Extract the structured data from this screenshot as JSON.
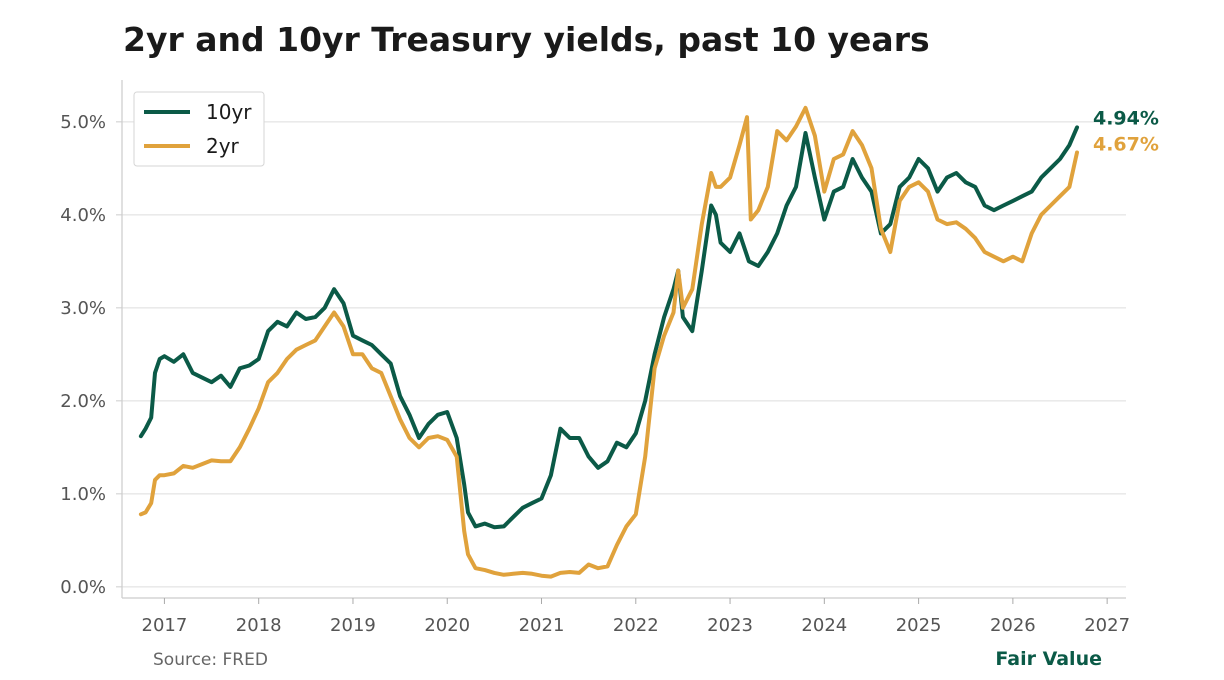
{
  "chart_data": {
    "type": "line",
    "title": "2yr and 10yr Treasury yields, past 10 years",
    "xlabel": "",
    "ylabel": "",
    "xlim": [
      2016.55,
      2027.2
    ],
    "ylim": [
      -0.12,
      5.45
    ],
    "x_ticks": [
      2017,
      2018,
      2019,
      2020,
      2021,
      2022,
      2023,
      2024,
      2025,
      2026,
      2027
    ],
    "y_ticks": [
      0,
      1,
      2,
      3,
      4,
      5
    ],
    "y_tick_labels": [
      "0.0%",
      "1.0%",
      "2.0%",
      "3.0%",
      "4.0%",
      "5.0%"
    ],
    "grid": "horizontal",
    "legend_position": "top-left",
    "series": [
      {
        "name": "10yr",
        "color": "#0b5a47",
        "end_label": "4.94%",
        "points": [
          [
            2016.75,
            1.62
          ],
          [
            2016.8,
            1.7
          ],
          [
            2016.86,
            1.82
          ],
          [
            2016.9,
            2.3
          ],
          [
            2016.95,
            2.45
          ],
          [
            2017.0,
            2.48
          ],
          [
            2017.1,
            2.42
          ],
          [
            2017.2,
            2.5
          ],
          [
            2017.3,
            2.3
          ],
          [
            2017.4,
            2.25
          ],
          [
            2017.5,
            2.2
          ],
          [
            2017.6,
            2.27
          ],
          [
            2017.7,
            2.15
          ],
          [
            2017.8,
            2.35
          ],
          [
            2017.9,
            2.38
          ],
          [
            2018.0,
            2.45
          ],
          [
            2018.1,
            2.75
          ],
          [
            2018.2,
            2.85
          ],
          [
            2018.3,
            2.8
          ],
          [
            2018.4,
            2.95
          ],
          [
            2018.5,
            2.88
          ],
          [
            2018.6,
            2.9
          ],
          [
            2018.7,
            3.0
          ],
          [
            2018.8,
            3.2
          ],
          [
            2018.9,
            3.05
          ],
          [
            2019.0,
            2.7
          ],
          [
            2019.1,
            2.65
          ],
          [
            2019.2,
            2.6
          ],
          [
            2019.3,
            2.5
          ],
          [
            2019.4,
            2.4
          ],
          [
            2019.5,
            2.05
          ],
          [
            2019.6,
            1.85
          ],
          [
            2019.7,
            1.6
          ],
          [
            2019.8,
            1.75
          ],
          [
            2019.9,
            1.85
          ],
          [
            2020.0,
            1.88
          ],
          [
            2020.1,
            1.6
          ],
          [
            2020.18,
            1.1
          ],
          [
            2020.22,
            0.8
          ],
          [
            2020.3,
            0.65
          ],
          [
            2020.4,
            0.68
          ],
          [
            2020.5,
            0.64
          ],
          [
            2020.6,
            0.65
          ],
          [
            2020.7,
            0.75
          ],
          [
            2020.8,
            0.85
          ],
          [
            2020.9,
            0.9
          ],
          [
            2021.0,
            0.95
          ],
          [
            2021.1,
            1.2
          ],
          [
            2021.2,
            1.7
          ],
          [
            2021.3,
            1.6
          ],
          [
            2021.4,
            1.6
          ],
          [
            2021.5,
            1.4
          ],
          [
            2021.6,
            1.28
          ],
          [
            2021.7,
            1.35
          ],
          [
            2021.8,
            1.55
          ],
          [
            2021.9,
            1.5
          ],
          [
            2022.0,
            1.65
          ],
          [
            2022.1,
            2.0
          ],
          [
            2022.2,
            2.5
          ],
          [
            2022.3,
            2.9
          ],
          [
            2022.4,
            3.2
          ],
          [
            2022.45,
            3.4
          ],
          [
            2022.5,
            2.9
          ],
          [
            2022.6,
            2.75
          ],
          [
            2022.7,
            3.4
          ],
          [
            2022.8,
            4.1
          ],
          [
            2022.85,
            4.0
          ],
          [
            2022.9,
            3.7
          ],
          [
            2023.0,
            3.6
          ],
          [
            2023.1,
            3.8
          ],
          [
            2023.2,
            3.5
          ],
          [
            2023.3,
            3.45
          ],
          [
            2023.4,
            3.6
          ],
          [
            2023.5,
            3.8
          ],
          [
            2023.6,
            4.1
          ],
          [
            2023.7,
            4.3
          ],
          [
            2023.8,
            4.88
          ],
          [
            2023.9,
            4.4
          ],
          [
            2024.0,
            3.95
          ],
          [
            2024.1,
            4.25
          ],
          [
            2024.2,
            4.3
          ],
          [
            2024.3,
            4.6
          ],
          [
            2024.4,
            4.4
          ],
          [
            2024.5,
            4.25
          ],
          [
            2024.6,
            3.8
          ],
          [
            2024.7,
            3.9
          ],
          [
            2024.8,
            4.3
          ],
          [
            2024.9,
            4.4
          ],
          [
            2025.0,
            4.6
          ],
          [
            2025.1,
            4.5
          ],
          [
            2025.2,
            4.25
          ],
          [
            2025.3,
            4.4
          ],
          [
            2025.4,
            4.45
          ],
          [
            2025.5,
            4.35
          ],
          [
            2025.6,
            4.3
          ],
          [
            2025.7,
            4.1
          ],
          [
            2025.8,
            4.05
          ],
          [
            2025.9,
            4.1
          ],
          [
            2026.0,
            4.15
          ],
          [
            2026.1,
            4.2
          ],
          [
            2026.2,
            4.25
          ],
          [
            2026.3,
            4.4
          ],
          [
            2026.4,
            4.5
          ],
          [
            2026.5,
            4.6
          ],
          [
            2026.6,
            4.75
          ],
          [
            2026.68,
            4.94
          ]
        ]
      },
      {
        "name": "2yr",
        "color": "#e0a23c",
        "end_label": "4.67%",
        "points": [
          [
            2016.75,
            0.78
          ],
          [
            2016.8,
            0.8
          ],
          [
            2016.86,
            0.9
          ],
          [
            2016.9,
            1.15
          ],
          [
            2016.95,
            1.2
          ],
          [
            2017.0,
            1.2
          ],
          [
            2017.1,
            1.22
          ],
          [
            2017.2,
            1.3
          ],
          [
            2017.3,
            1.28
          ],
          [
            2017.4,
            1.32
          ],
          [
            2017.5,
            1.36
          ],
          [
            2017.6,
            1.35
          ],
          [
            2017.7,
            1.35
          ],
          [
            2017.8,
            1.5
          ],
          [
            2017.9,
            1.7
          ],
          [
            2018.0,
            1.92
          ],
          [
            2018.1,
            2.2
          ],
          [
            2018.2,
            2.3
          ],
          [
            2018.3,
            2.45
          ],
          [
            2018.4,
            2.55
          ],
          [
            2018.5,
            2.6
          ],
          [
            2018.6,
            2.65
          ],
          [
            2018.7,
            2.8
          ],
          [
            2018.8,
            2.95
          ],
          [
            2018.9,
            2.8
          ],
          [
            2019.0,
            2.5
          ],
          [
            2019.1,
            2.5
          ],
          [
            2019.2,
            2.35
          ],
          [
            2019.3,
            2.3
          ],
          [
            2019.4,
            2.05
          ],
          [
            2019.5,
            1.8
          ],
          [
            2019.6,
            1.6
          ],
          [
            2019.7,
            1.5
          ],
          [
            2019.8,
            1.6
          ],
          [
            2019.9,
            1.62
          ],
          [
            2020.0,
            1.58
          ],
          [
            2020.1,
            1.4
          ],
          [
            2020.18,
            0.6
          ],
          [
            2020.22,
            0.35
          ],
          [
            2020.3,
            0.2
          ],
          [
            2020.4,
            0.18
          ],
          [
            2020.5,
            0.15
          ],
          [
            2020.6,
            0.13
          ],
          [
            2020.7,
            0.14
          ],
          [
            2020.8,
            0.15
          ],
          [
            2020.9,
            0.14
          ],
          [
            2021.0,
            0.12
          ],
          [
            2021.1,
            0.11
          ],
          [
            2021.2,
            0.15
          ],
          [
            2021.3,
            0.16
          ],
          [
            2021.4,
            0.15
          ],
          [
            2021.5,
            0.24
          ],
          [
            2021.6,
            0.2
          ],
          [
            2021.7,
            0.22
          ],
          [
            2021.8,
            0.45
          ],
          [
            2021.9,
            0.65
          ],
          [
            2022.0,
            0.78
          ],
          [
            2022.1,
            1.4
          ],
          [
            2022.2,
            2.35
          ],
          [
            2022.3,
            2.7
          ],
          [
            2022.4,
            2.95
          ],
          [
            2022.45,
            3.4
          ],
          [
            2022.5,
            3.0
          ],
          [
            2022.6,
            3.2
          ],
          [
            2022.7,
            3.9
          ],
          [
            2022.8,
            4.45
          ],
          [
            2022.85,
            4.3
          ],
          [
            2022.9,
            4.3
          ],
          [
            2023.0,
            4.4
          ],
          [
            2023.1,
            4.75
          ],
          [
            2023.18,
            5.05
          ],
          [
            2023.22,
            3.95
          ],
          [
            2023.3,
            4.05
          ],
          [
            2023.4,
            4.3
          ],
          [
            2023.5,
            4.9
          ],
          [
            2023.6,
            4.8
          ],
          [
            2023.7,
            4.95
          ],
          [
            2023.8,
            5.15
          ],
          [
            2023.9,
            4.85
          ],
          [
            2024.0,
            4.25
          ],
          [
            2024.1,
            4.6
          ],
          [
            2024.2,
            4.65
          ],
          [
            2024.3,
            4.9
          ],
          [
            2024.4,
            4.75
          ],
          [
            2024.5,
            4.5
          ],
          [
            2024.6,
            3.85
          ],
          [
            2024.7,
            3.6
          ],
          [
            2024.8,
            4.15
          ],
          [
            2024.9,
            4.3
          ],
          [
            2025.0,
            4.35
          ],
          [
            2025.1,
            4.25
          ],
          [
            2025.2,
            3.95
          ],
          [
            2025.3,
            3.9
          ],
          [
            2025.4,
            3.92
          ],
          [
            2025.5,
            3.85
          ],
          [
            2025.6,
            3.75
          ],
          [
            2025.7,
            3.6
          ],
          [
            2025.8,
            3.55
          ],
          [
            2025.9,
            3.5
          ],
          [
            2026.0,
            3.55
          ],
          [
            2026.1,
            3.5
          ],
          [
            2026.2,
            3.8
          ],
          [
            2026.3,
            4.0
          ],
          [
            2026.4,
            4.1
          ],
          [
            2026.5,
            4.2
          ],
          [
            2026.6,
            4.3
          ],
          [
            2026.68,
            4.67
          ]
        ]
      }
    ]
  },
  "source": "Source: FRED",
  "brand": "Fair Value"
}
